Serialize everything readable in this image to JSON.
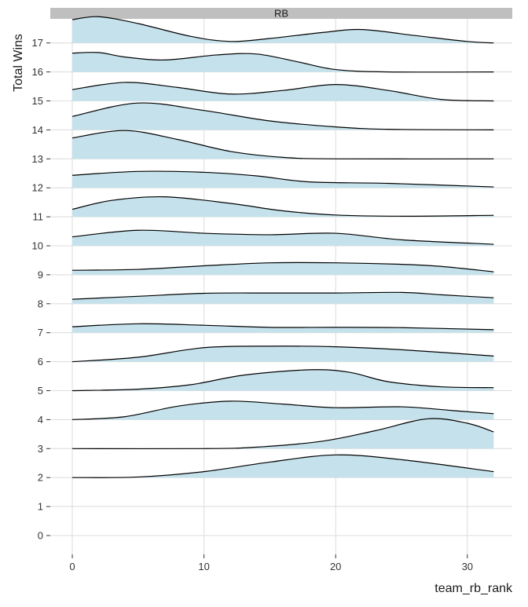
{
  "chart_data": {
    "type": "area",
    "subtype": "ridgeline",
    "panel_label": "RB",
    "xlabel": "team_rb_rank",
    "ylabel": "Total Wins",
    "xlim": [
      -1.5,
      33.5
    ],
    "ylim": [
      -0.7,
      18
    ],
    "x_ticks": [
      0,
      10,
      20,
      30
    ],
    "y_ticks": [
      0,
      1,
      2,
      3,
      4,
      5,
      6,
      7,
      8,
      9,
      10,
      11,
      12,
      13,
      14,
      15,
      16,
      17
    ],
    "grid": true,
    "colors": {
      "fill": "#c5e2ec",
      "line": "#000000",
      "strip": "#bfbfbf",
      "grid": "#dedede"
    },
    "x_range": [
      0,
      32
    ],
    "ridges": [
      {
        "level": 2,
        "points": [
          [
            0,
            0
          ],
          [
            5,
            0.02
          ],
          [
            10,
            0.2
          ],
          [
            15,
            0.52
          ],
          [
            20,
            0.76
          ],
          [
            25,
            0.6
          ],
          [
            32,
            0.2
          ]
        ]
      },
      {
        "level": 3,
        "points": [
          [
            0,
            0
          ],
          [
            10,
            0
          ],
          [
            14,
            0.05
          ],
          [
            19,
            0.25
          ],
          [
            23,
            0.6
          ],
          [
            27,
            1.0
          ],
          [
            30,
            0.85
          ],
          [
            32,
            0.56
          ]
        ]
      },
      {
        "level": 4,
        "points": [
          [
            0,
            0
          ],
          [
            4,
            0.1
          ],
          [
            8,
            0.45
          ],
          [
            12,
            0.62
          ],
          [
            16,
            0.52
          ],
          [
            20,
            0.4
          ],
          [
            25,
            0.43
          ],
          [
            29,
            0.3
          ],
          [
            32,
            0.2
          ]
        ]
      },
      {
        "level": 5,
        "points": [
          [
            0,
            0
          ],
          [
            5,
            0.05
          ],
          [
            9,
            0.2
          ],
          [
            13,
            0.52
          ],
          [
            18,
            0.7
          ],
          [
            21,
            0.62
          ],
          [
            24,
            0.3
          ],
          [
            28,
            0.13
          ],
          [
            32,
            0.1
          ]
        ]
      },
      {
        "level": 6,
        "points": [
          [
            0,
            0
          ],
          [
            5,
            0.15
          ],
          [
            10,
            0.47
          ],
          [
            15,
            0.52
          ],
          [
            20,
            0.5
          ],
          [
            25,
            0.4
          ],
          [
            32,
            0.19
          ]
        ]
      },
      {
        "level": 7,
        "points": [
          [
            0,
            0.2
          ],
          [
            5,
            0.3
          ],
          [
            10,
            0.25
          ],
          [
            15,
            0.18
          ],
          [
            20,
            0.18
          ],
          [
            25,
            0.17
          ],
          [
            32,
            0.1
          ]
        ]
      },
      {
        "level": 8,
        "points": [
          [
            0,
            0.15
          ],
          [
            5,
            0.25
          ],
          [
            10,
            0.35
          ],
          [
            15,
            0.36
          ],
          [
            20,
            0.36
          ],
          [
            25,
            0.38
          ],
          [
            28,
            0.3
          ],
          [
            32,
            0.2
          ]
        ]
      },
      {
        "level": 9,
        "points": [
          [
            0,
            0.15
          ],
          [
            5,
            0.18
          ],
          [
            10,
            0.3
          ],
          [
            15,
            0.4
          ],
          [
            20,
            0.4
          ],
          [
            25,
            0.35
          ],
          [
            28,
            0.28
          ],
          [
            32,
            0.1
          ]
        ]
      },
      {
        "level": 10,
        "points": [
          [
            0,
            0.3
          ],
          [
            5,
            0.52
          ],
          [
            10,
            0.42
          ],
          [
            15,
            0.37
          ],
          [
            20,
            0.42
          ],
          [
            25,
            0.2
          ],
          [
            32,
            0.05
          ]
        ]
      },
      {
        "level": 11,
        "points": [
          [
            0,
            0.25
          ],
          [
            3,
            0.55
          ],
          [
            7,
            0.67
          ],
          [
            12,
            0.45
          ],
          [
            16,
            0.2
          ],
          [
            20,
            0.06
          ],
          [
            25,
            0.02
          ],
          [
            32,
            0.05
          ]
        ]
      },
      {
        "level": 12,
        "points": [
          [
            0,
            0.42
          ],
          [
            5,
            0.55
          ],
          [
            10,
            0.52
          ],
          [
            14,
            0.4
          ],
          [
            18,
            0.2
          ],
          [
            24,
            0.15
          ],
          [
            32,
            0.03
          ]
        ]
      },
      {
        "level": 13,
        "points": [
          [
            0,
            0.7
          ],
          [
            4,
            0.95
          ],
          [
            8,
            0.65
          ],
          [
            12,
            0.25
          ],
          [
            16,
            0.05
          ],
          [
            20,
            0
          ],
          [
            32,
            0
          ]
        ]
      },
      {
        "level": 14,
        "points": [
          [
            0,
            0.45
          ],
          [
            5,
            0.9
          ],
          [
            10,
            0.65
          ],
          [
            15,
            0.3
          ],
          [
            20,
            0.1
          ],
          [
            24,
            0.02
          ],
          [
            32,
            0
          ]
        ]
      },
      {
        "level": 15,
        "points": [
          [
            0,
            0.38
          ],
          [
            4,
            0.62
          ],
          [
            8,
            0.45
          ],
          [
            12,
            0.23
          ],
          [
            16,
            0.35
          ],
          [
            20,
            0.55
          ],
          [
            24,
            0.35
          ],
          [
            28,
            0.05
          ],
          [
            32,
            0
          ]
        ]
      },
      {
        "level": 16,
        "points": [
          [
            0,
            0.63
          ],
          [
            2,
            0.65
          ],
          [
            4,
            0.5
          ],
          [
            7,
            0.4
          ],
          [
            11,
            0.57
          ],
          [
            14,
            0.6
          ],
          [
            17,
            0.35
          ],
          [
            20,
            0.08
          ],
          [
            24,
            0
          ],
          [
            32,
            0
          ]
        ]
      },
      {
        "level": 17,
        "points": [
          [
            0,
            0.78
          ],
          [
            2,
            0.88
          ],
          [
            5,
            0.65
          ],
          [
            9,
            0.22
          ],
          [
            12,
            0.05
          ],
          [
            15,
            0.15
          ],
          [
            19,
            0.35
          ],
          [
            22,
            0.45
          ],
          [
            26,
            0.25
          ],
          [
            30,
            0.05
          ],
          [
            32,
            0
          ]
        ]
      }
    ]
  }
}
